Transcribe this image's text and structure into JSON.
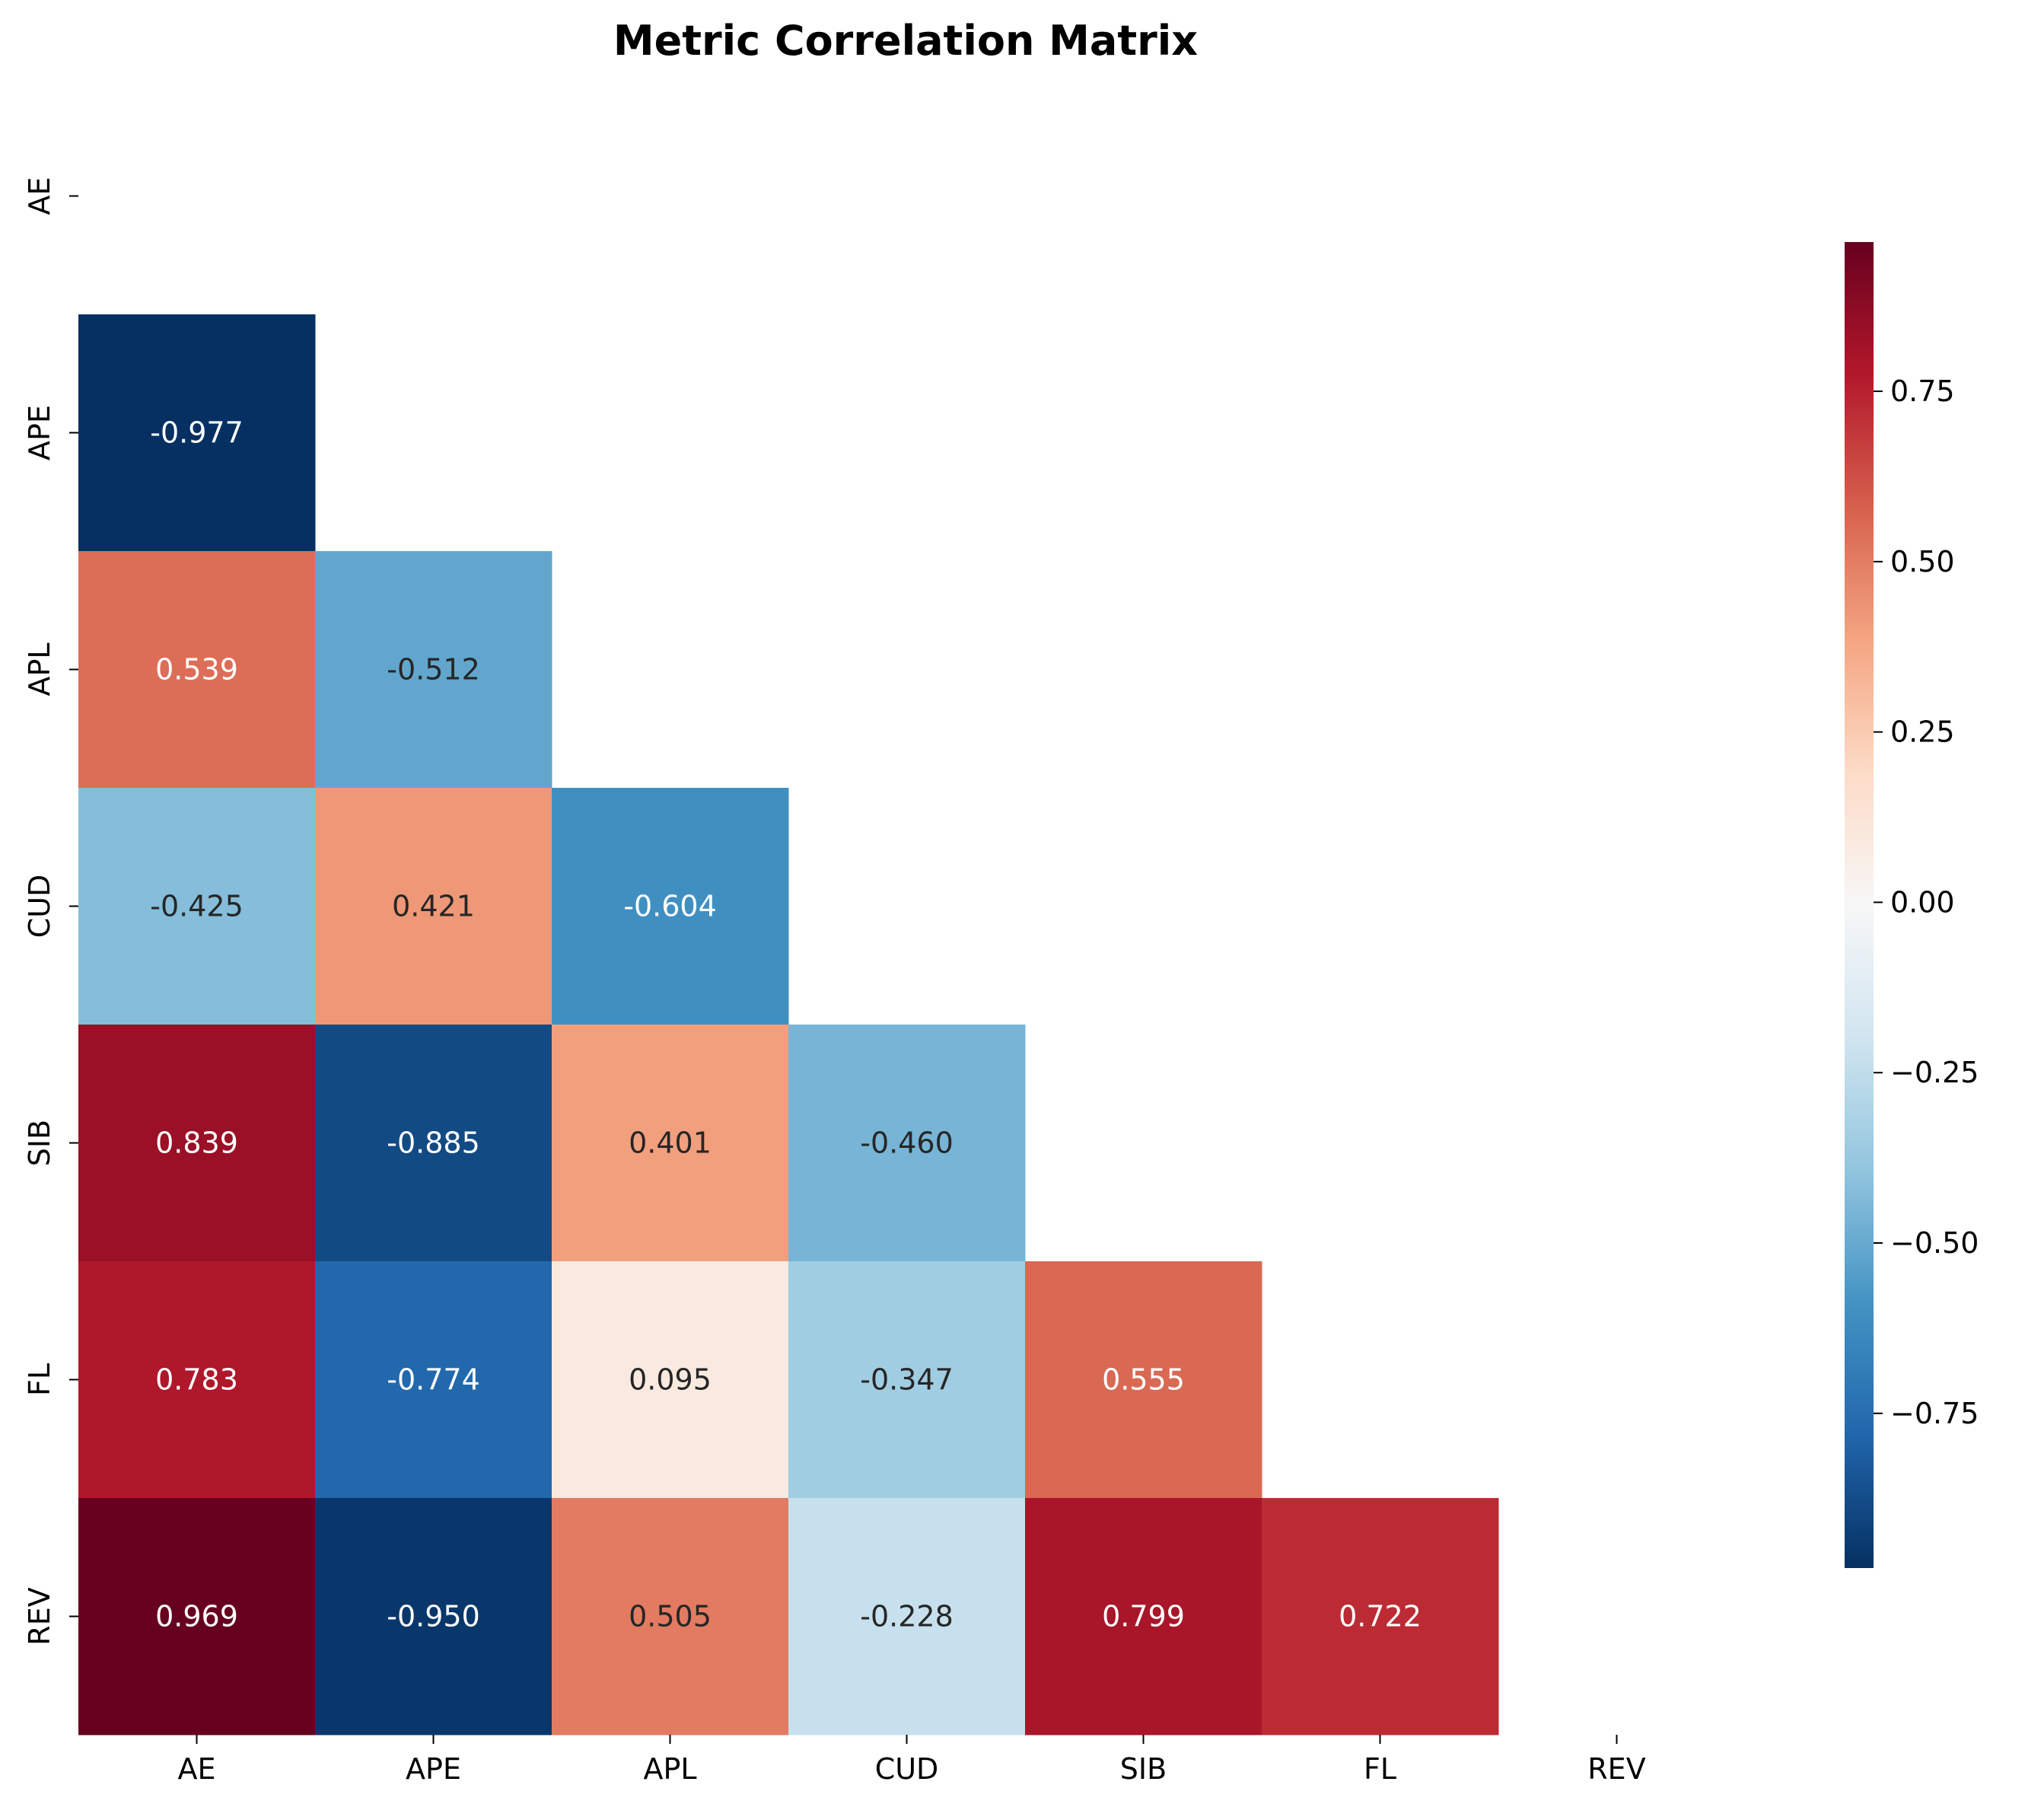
{
  "chart_data": {
    "type": "heatmap",
    "title": "Metric Correlation Matrix",
    "variables": [
      "AE",
      "APE",
      "APL",
      "CUD",
      "SIB",
      "FL",
      "REV"
    ],
    "mask": "upper-triangle-including-diagonal",
    "cells": [
      {
        "row": "APE",
        "col": "AE",
        "value": -0.977,
        "label": "-0.977"
      },
      {
        "row": "APL",
        "col": "AE",
        "value": 0.539,
        "label": "0.539"
      },
      {
        "row": "APL",
        "col": "APE",
        "value": -0.512,
        "label": "-0.512"
      },
      {
        "row": "CUD",
        "col": "AE",
        "value": -0.425,
        "label": "-0.425"
      },
      {
        "row": "CUD",
        "col": "APE",
        "value": 0.421,
        "label": "0.421"
      },
      {
        "row": "CUD",
        "col": "APL",
        "value": -0.604,
        "label": "-0.604"
      },
      {
        "row": "SIB",
        "col": "AE",
        "value": 0.839,
        "label": "0.839"
      },
      {
        "row": "SIB",
        "col": "APE",
        "value": -0.885,
        "label": "-0.885"
      },
      {
        "row": "SIB",
        "col": "APL",
        "value": 0.401,
        "label": "0.401"
      },
      {
        "row": "SIB",
        "col": "CUD",
        "value": -0.46,
        "label": "-0.460"
      },
      {
        "row": "FL",
        "col": "AE",
        "value": 0.783,
        "label": "0.783"
      },
      {
        "row": "FL",
        "col": "APE",
        "value": -0.774,
        "label": "-0.774"
      },
      {
        "row": "FL",
        "col": "APL",
        "value": 0.095,
        "label": "0.095"
      },
      {
        "row": "FL",
        "col": "CUD",
        "value": -0.347,
        "label": "-0.347"
      },
      {
        "row": "FL",
        "col": "SIB",
        "value": 0.555,
        "label": "0.555"
      },
      {
        "row": "REV",
        "col": "AE",
        "value": 0.969,
        "label": "0.969"
      },
      {
        "row": "REV",
        "col": "APE",
        "value": -0.95,
        "label": "-0.950"
      },
      {
        "row": "REV",
        "col": "APL",
        "value": 0.505,
        "label": "0.505"
      },
      {
        "row": "REV",
        "col": "CUD",
        "value": -0.228,
        "label": "-0.228"
      },
      {
        "row": "REV",
        "col": "SIB",
        "value": 0.799,
        "label": "0.799"
      },
      {
        "row": "REV",
        "col": "FL",
        "value": 0.722,
        "label": "0.722"
      }
    ],
    "colormap": "RdBu_r",
    "colorbar": {
      "range": [
        -0.977,
        0.969
      ],
      "ticks": [
        -0.75,
        -0.5,
        -0.25,
        0.0,
        0.25,
        0.5,
        0.75
      ],
      "tick_labels": [
        "−0.75",
        "−0.50",
        "−0.25",
        "0.00",
        "0.25",
        "0.50",
        "0.75"
      ],
      "placement": "right"
    },
    "grid": false
  }
}
